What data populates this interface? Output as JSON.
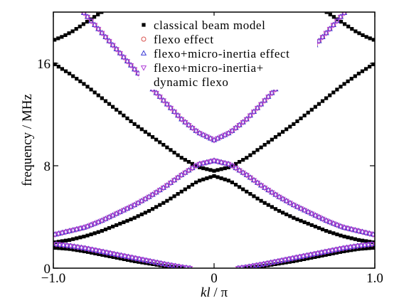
{
  "chart_data": {
    "type": "scatter",
    "xlabel": {
      "italic": "kl",
      "rest": " / π"
    },
    "ylabel": "frequency / MHz",
    "xlim": [
      -1.0,
      1.0
    ],
    "ylim": [
      0,
      20
    ],
    "xticks": [
      -1.0,
      0,
      1.0
    ],
    "xtick_labels": [
      "−1.0",
      "0",
      "1.0"
    ],
    "yticks": [
      0,
      8,
      16
    ],
    "ytick_labels": [
      "0",
      "8",
      "16"
    ],
    "grid": false,
    "legend_position": "top-center",
    "legend": [
      {
        "label": "classical beam model",
        "marker": "square-filled",
        "color": "#000000"
      },
      {
        "label": "flexo effect",
        "marker": "circle-open",
        "color": "#d9534f"
      },
      {
        "label": "flexo+micro-inertia effect",
        "marker": "triangle-up-open",
        "color": "#3b3bd6"
      },
      {
        "label": "flexo+micro-inertia+",
        "label_line2": "dynamic flexo",
        "marker": "triangle-down-open",
        "color": "#b040d8"
      }
    ],
    "series": [
      {
        "name": "classical beam model",
        "branches": [
          {
            "x": [
              0.0,
              0.1,
              0.2,
              0.3,
              0.4,
              0.5,
              0.6,
              0.7,
              0.8,
              0.9,
              1.0
            ],
            "y": [
              7.6,
              7.9,
              8.6,
              9.5,
              10.4,
              11.3,
              12.3,
              13.3,
              14.3,
              15.2,
              16.0
            ]
          },
          {
            "x": [
              0.0,
              0.1,
              0.2,
              0.3,
              0.4,
              0.5,
              0.6,
              0.7,
              0.8,
              0.9,
              1.0
            ],
            "y": [
              7.2,
              6.8,
              6.0,
              5.2,
              4.5,
              3.9,
              3.4,
              2.9,
              2.5,
              2.2,
              2.0
            ]
          },
          {
            "x": [
              0.7,
              0.76,
              0.82,
              0.88,
              0.94,
              1.0
            ],
            "y": [
              20.0,
              19.5,
              19.0,
              18.5,
              18.1,
              17.8
            ]
          },
          {
            "x": [
              0.2,
              0.3,
              0.4,
              0.5,
              0.6,
              0.7,
              0.8,
              0.9,
              1.0
            ],
            "y": [
              0.0,
              0.15,
              0.35,
              0.55,
              0.8,
              1.05,
              1.3,
              1.5,
              1.6
            ]
          }
        ]
      },
      {
        "name": "flexo effect",
        "branches": [
          {
            "x": [
              0.0,
              0.1,
              0.2,
              0.3,
              0.4,
              0.5,
              0.6,
              0.7,
              0.8,
              0.9,
              1.0
            ],
            "y": [
              10.0,
              10.6,
              11.6,
              12.9,
              14.2,
              15.6,
              17.0,
              18.4,
              19.8,
              21.2,
              22.6
            ]
          },
          {
            "x": [
              0.0,
              0.1,
              0.2,
              0.3,
              0.4,
              0.5,
              0.6,
              0.7,
              0.8,
              0.9,
              1.0
            ],
            "y": [
              8.4,
              8.1,
              7.3,
              6.4,
              5.6,
              4.9,
              4.3,
              3.7,
              3.2,
              2.9,
              2.6
            ]
          },
          {
            "x": [
              0.15,
              0.2,
              0.3,
              0.4,
              0.5,
              0.6,
              0.7,
              0.8,
              0.9,
              1.0
            ],
            "y": [
              0.0,
              0.08,
              0.3,
              0.55,
              0.8,
              1.05,
              1.3,
              1.55,
              1.75,
              1.9
            ]
          }
        ]
      },
      {
        "name": "flexo+micro-inertia effect",
        "branches": [
          {
            "x": [
              0.0,
              0.1,
              0.2,
              0.3,
              0.4,
              0.5,
              0.6,
              0.7,
              0.8,
              0.9,
              1.0
            ],
            "y": [
              10.0,
              10.6,
              11.6,
              12.9,
              14.2,
              15.6,
              17.0,
              18.4,
              19.8,
              21.2,
              22.6
            ]
          },
          {
            "x": [
              0.0,
              0.1,
              0.2,
              0.3,
              0.4,
              0.5,
              0.6,
              0.7,
              0.8,
              0.9,
              1.0
            ],
            "y": [
              8.4,
              8.1,
              7.3,
              6.4,
              5.6,
              4.9,
              4.3,
              3.7,
              3.2,
              2.9,
              2.6
            ]
          },
          {
            "x": [
              0.15,
              0.2,
              0.3,
              0.4,
              0.5,
              0.6,
              0.7,
              0.8,
              0.9,
              1.0
            ],
            "y": [
              0.0,
              0.08,
              0.3,
              0.55,
              0.8,
              1.05,
              1.3,
              1.55,
              1.75,
              1.9
            ]
          }
        ]
      },
      {
        "name": "flexo+micro-inertia+dynamic flexo",
        "branches": [
          {
            "x": [
              0.0,
              0.1,
              0.2,
              0.3,
              0.4,
              0.5,
              0.6,
              0.7,
              0.8,
              0.9,
              1.0
            ],
            "y": [
              10.0,
              10.6,
              11.6,
              12.9,
              14.2,
              15.6,
              17.0,
              18.4,
              19.8,
              21.2,
              22.6
            ]
          },
          {
            "x": [
              0.0,
              0.1,
              0.2,
              0.3,
              0.4,
              0.5,
              0.6,
              0.7,
              0.8,
              0.9,
              1.0
            ],
            "y": [
              8.4,
              8.1,
              7.3,
              6.4,
              5.6,
              4.9,
              4.3,
              3.7,
              3.2,
              2.9,
              2.6
            ]
          },
          {
            "x": [
              0.15,
              0.2,
              0.3,
              0.4,
              0.5,
              0.6,
              0.7,
              0.8,
              0.9,
              1.0
            ],
            "y": [
              0.0,
              0.08,
              0.3,
              0.55,
              0.8,
              1.05,
              1.3,
              1.55,
              1.75,
              1.9
            ]
          }
        ]
      }
    ]
  }
}
